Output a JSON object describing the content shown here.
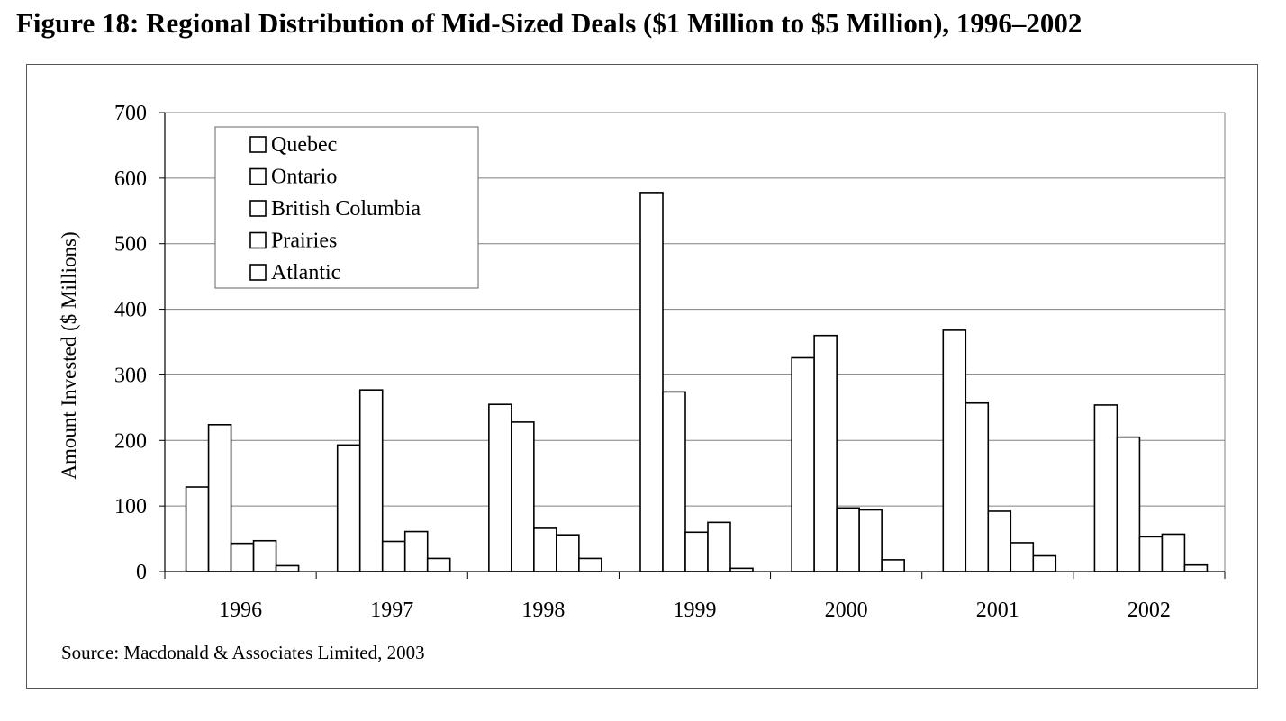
{
  "figure": {
    "title": "Figure 18: Regional Distribution of Mid-Sized Deals ($1 Million to $5 Million), 1996–2002",
    "source": "Source: Macdonald & Associates Limited, 2003"
  },
  "colors": {
    "bar_fill": "#ffffff",
    "bar_stroke": "#000000",
    "gridline": "#808080",
    "frame": "#555555"
  },
  "chart_data": {
    "type": "bar",
    "title": "Figure 18: Regional Distribution of Mid-Sized Deals ($1 Million to $5 Million), 1996–2002",
    "xlabel": "",
    "ylabel": "Amount Invested ($ Millions)",
    "ylim": [
      0,
      700
    ],
    "yticks": [
      0,
      100,
      200,
      300,
      400,
      500,
      600,
      700
    ],
    "grid": true,
    "legend_position": "top-left",
    "categories": [
      "1996",
      "1997",
      "1998",
      "1999",
      "2000",
      "2001",
      "2002"
    ],
    "series": [
      {
        "name": "Quebec",
        "values": [
          129,
          193,
          255,
          578,
          326,
          368,
          254
        ]
      },
      {
        "name": "Ontario",
        "values": [
          224,
          277,
          228,
          274,
          360,
          257,
          205
        ]
      },
      {
        "name": "British Columbia",
        "values": [
          43,
          46,
          66,
          60,
          97,
          92,
          53
        ]
      },
      {
        "name": "Prairies",
        "values": [
          47,
          61,
          56,
          75,
          94,
          44,
          57
        ]
      },
      {
        "name": "Atlantic",
        "values": [
          9,
          20,
          20,
          5,
          18,
          24,
          10
        ]
      }
    ]
  }
}
